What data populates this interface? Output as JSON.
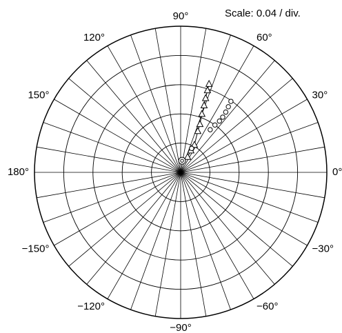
{
  "chart_data": {
    "type": "polar",
    "subtitle": "Scale: 0.04 / div.",
    "rlim": [
      0,
      0.2
    ],
    "rticks": [
      0,
      0.04,
      0.08,
      0.12,
      0.16,
      0.2
    ],
    "theta_grid_step": 10,
    "thetaticks": [
      {
        "value": 0,
        "label": "0°"
      },
      {
        "value": 30,
        "label": "30°"
      },
      {
        "value": 60,
        "label": "60°"
      },
      {
        "value": 90,
        "label": "90°"
      },
      {
        "value": 120,
        "label": "120°"
      },
      {
        "value": 150,
        "label": "150°"
      },
      {
        "value": 180,
        "label": "180°"
      },
      {
        "value": -150,
        "label": "−150°"
      },
      {
        "value": -120,
        "label": "−120°"
      },
      {
        "value": -90,
        "label": "−90°"
      },
      {
        "value": -60,
        "label": "−60°"
      },
      {
        "value": -30,
        "label": "−30°"
      }
    ],
    "grid_color": "#000000",
    "series": [
      {
        "marker": "triangle",
        "color": "#000000",
        "theta": [
          65.6,
          64.9,
          63.4,
          67.4,
          68.2,
          70.0,
          70.7,
          71.4,
          71.9,
          72.2
        ],
        "r": [
          0.023,
          0.033,
          0.042,
          0.061,
          0.071,
          0.085,
          0.097,
          0.107,
          0.118,
          0.127
        ]
      },
      {
        "marker": "circle",
        "color": "#000000",
        "theta": [
          65.4,
          55.3,
          54.1,
          52.9,
          52.7,
          53.2,
          54.0,
          54.7
        ],
        "r": [
          0.036,
          0.071,
          0.08,
          0.088,
          0.095,
          0.103,
          0.111,
          0.119
        ]
      },
      {
        "marker": "double-circle",
        "color": "#000000",
        "theta": [
          83
        ],
        "r": [
          0.016
        ]
      }
    ]
  }
}
